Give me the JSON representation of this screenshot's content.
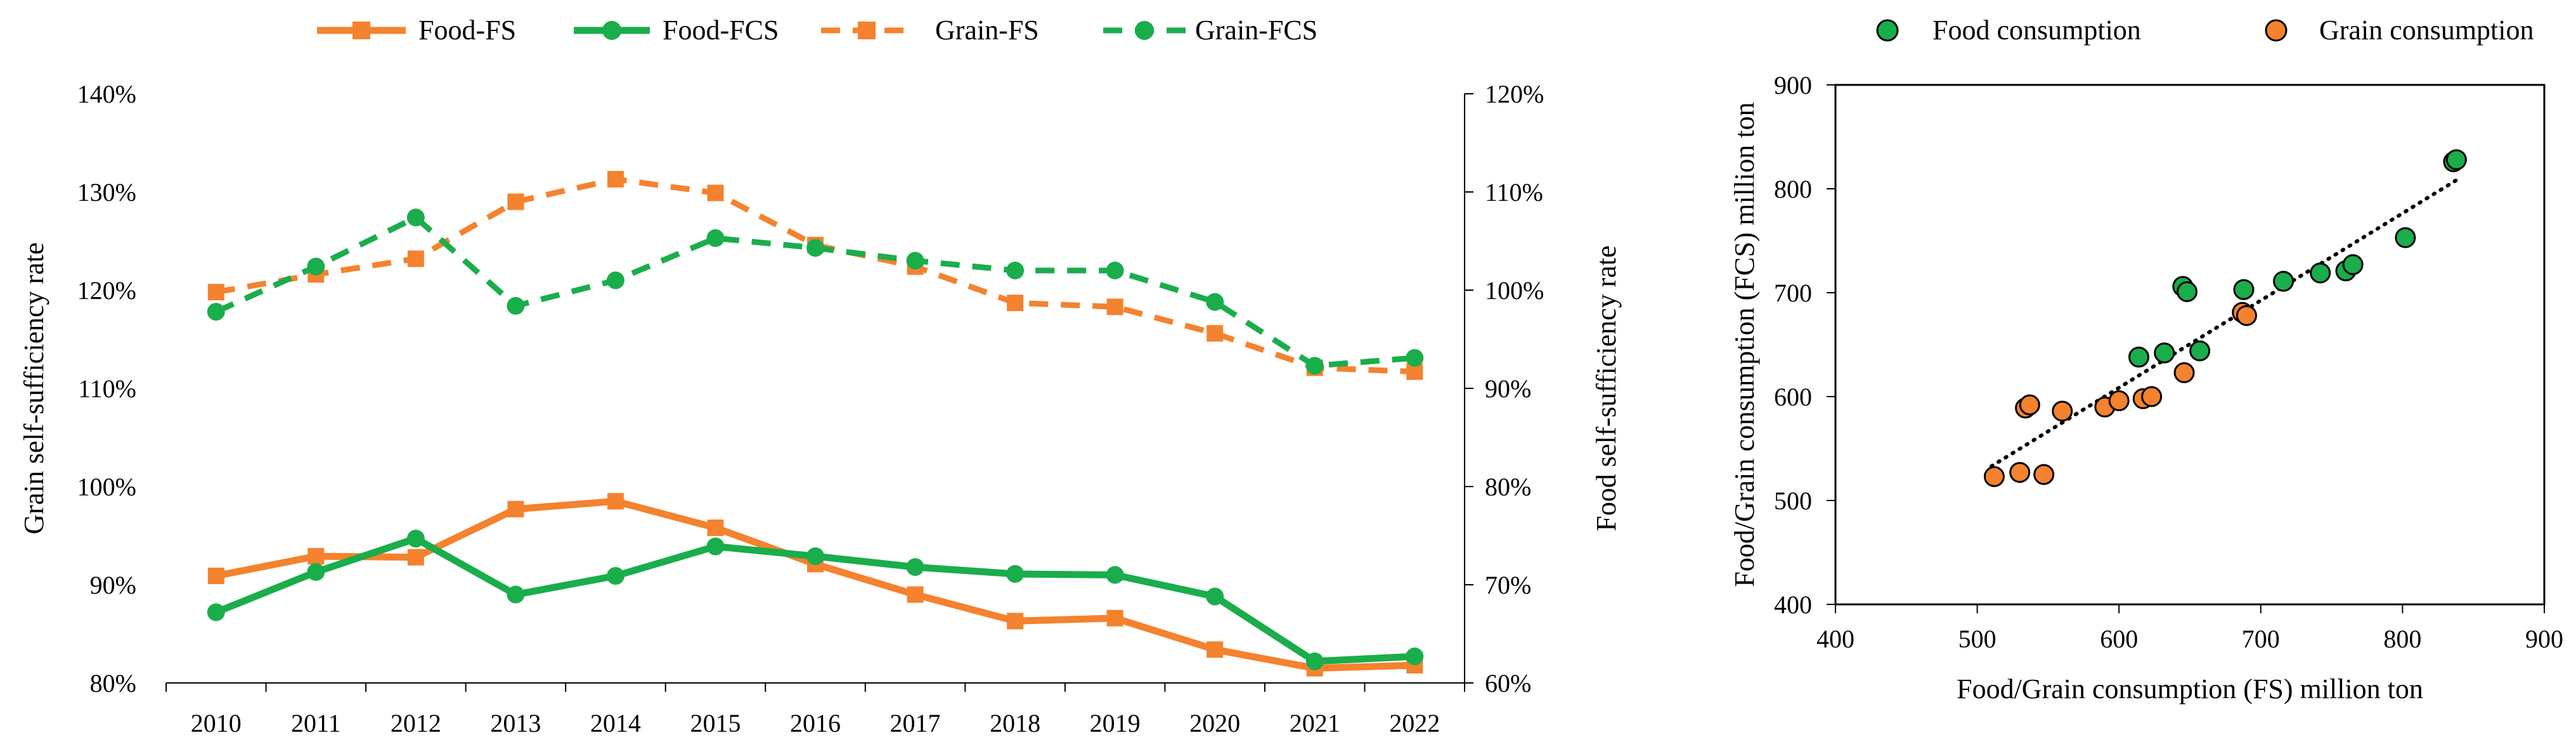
{
  "chart_data": [
    {
      "type": "line",
      "title": "",
      "xlabel": "",
      "ylabel": "Grain self-sufficiency rate",
      "y2label": "Food self-sufficiency rate",
      "categories": [
        "2010",
        "2011",
        "2012",
        "2013",
        "2014",
        "2015",
        "2016",
        "2017",
        "2018",
        "2019",
        "2020",
        "2021",
        "2022"
      ],
      "ylim": [
        0.8,
        1.4
      ],
      "y2lim": [
        0.6,
        1.2
      ],
      "yticks": [
        "80%",
        "90%",
        "100%",
        "110%",
        "120%",
        "130%",
        "140%"
      ],
      "y2ticks": [
        "60%",
        "70%",
        "80%",
        "90%",
        "100%",
        "110%",
        "120%"
      ],
      "legend_position": "top",
      "series": [
        {
          "name": "Food-FS",
          "axis": "right",
          "color": "#F4822E",
          "dash": "solid",
          "marker": "square",
          "values": [
            0.709,
            0.729,
            0.728,
            0.777,
            0.785,
            0.758,
            0.721,
            0.69,
            0.663,
            0.666,
            0.634,
            0.615,
            0.618
          ]
        },
        {
          "name": "Food-FCS",
          "axis": "right",
          "color": "#1AAD4B",
          "dash": "solid",
          "marker": "circle",
          "values": [
            0.672,
            0.713,
            0.747,
            0.69,
            0.709,
            0.739,
            0.729,
            0.718,
            0.711,
            0.71,
            0.688,
            0.622,
            0.627
          ]
        },
        {
          "name": "Grain-FS",
          "axis": "left",
          "color": "#F4822E",
          "dash": "dashed",
          "marker": "square",
          "values": [
            1.198,
            1.216,
            1.232,
            1.29,
            1.313,
            1.299,
            1.246,
            1.224,
            1.187,
            1.183,
            1.156,
            1.121,
            1.117
          ]
        },
        {
          "name": "Grain-FCS",
          "axis": "left",
          "color": "#1AAD4B",
          "dash": "dashed",
          "marker": "circle",
          "values": [
            1.178,
            1.224,
            1.274,
            1.184,
            1.21,
            1.253,
            1.243,
            1.23,
            1.22,
            1.22,
            1.188,
            1.123,
            1.131
          ]
        }
      ]
    },
    {
      "type": "scatter",
      "title": "",
      "xlabel": "Food/Grain consumption (FS) million ton",
      "ylabel": "Food/Grain consumption (FCS) million ton",
      "xlim": [
        400,
        900
      ],
      "ylim": [
        400,
        900
      ],
      "xticks": [
        "400",
        "500",
        "600",
        "700",
        "800",
        "900"
      ],
      "yticks": [
        "400",
        "500",
        "600",
        "700",
        "800",
        "900"
      ],
      "legend_position": "top",
      "trendline": {
        "style": "dotted",
        "from": [
          510,
          533
        ],
        "to": [
          840,
          810
        ]
      },
      "series": [
        {
          "name": "Food consumption",
          "color": "#1AAD4B",
          "points": [
            [
              614,
              638
            ],
            [
              632,
              642
            ],
            [
              645,
              706
            ],
            [
              648,
              701
            ],
            [
              657,
              644
            ],
            [
              688,
              703
            ],
            [
              716,
              711
            ],
            [
              742,
              719
            ],
            [
              760,
              721
            ],
            [
              765,
              727
            ],
            [
              802,
              753
            ],
            [
              836,
              826
            ],
            [
              838,
              828
            ]
          ]
        },
        {
          "name": "Grain consumption",
          "color": "#F4822E",
          "points": [
            [
              512,
              523
            ],
            [
              530,
              527
            ],
            [
              547,
              525
            ],
            [
              534,
              589
            ],
            [
              537,
              592
            ],
            [
              560,
              586
            ],
            [
              590,
              590
            ],
            [
              600,
              596
            ],
            [
              617,
              598
            ],
            [
              623,
              600
            ],
            [
              646,
              623
            ],
            [
              687,
              681
            ],
            [
              690,
              678
            ]
          ]
        }
      ]
    }
  ]
}
